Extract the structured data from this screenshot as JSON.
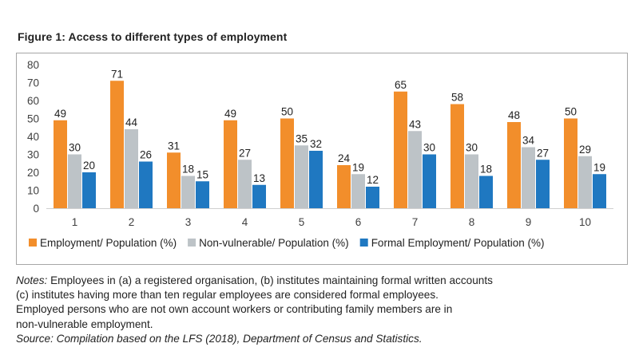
{
  "title": "Figure 1: Access to different types of employment",
  "chart_data": {
    "type": "bar",
    "categories": [
      "1",
      "2",
      "3",
      "4",
      "5",
      "6",
      "7",
      "8",
      "9",
      "10"
    ],
    "series": [
      {
        "name": "Employment/ Population (%)",
        "color": "#f28e2b",
        "values": [
          49,
          71,
          31,
          49,
          50,
          24,
          65,
          58,
          48,
          50
        ]
      },
      {
        "name": "Non-vulnerable/ Population (%)",
        "color": "#bdc3c7",
        "values": [
          30,
          44,
          18,
          27,
          35,
          19,
          43,
          30,
          34,
          29
        ]
      },
      {
        "name": "Formal Employment/ Population (%)",
        "color": "#1f78c1",
        "values": [
          20,
          26,
          15,
          13,
          32,
          12,
          30,
          18,
          27,
          19
        ]
      }
    ],
    "ylim": [
      0,
      80
    ],
    "yticks": [
      0,
      10,
      20,
      30,
      40,
      50,
      60,
      70,
      80
    ],
    "grid": false,
    "legend": "bottom"
  },
  "notes": {
    "label": "Notes:",
    "line1": " Employees in (a) a registered organisation, (b) institutes maintaining formal written accounts",
    "line2": "(c) institutes having more than ten regular employees are considered formal employees.",
    "line3": "Employed persons who are not own account workers or contributing family members are in",
    "line4": "non-vulnerable employment.",
    "source": "Source: Compilation based on the LFS (2018), Department of Census and Statistics."
  }
}
